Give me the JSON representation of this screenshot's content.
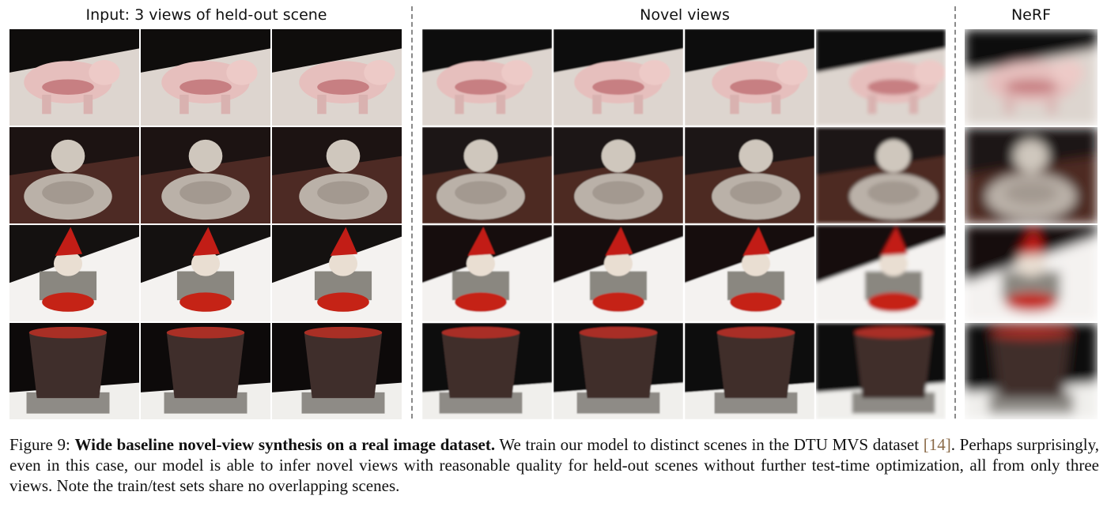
{
  "headers": {
    "input": "Input: 3 views of held-out scene",
    "novel": "Novel views",
    "nerf": "NeRF"
  },
  "rows": [
    {
      "scene": "pig",
      "input": [
        "pig view 1",
        "pig view 2",
        "pig view 3"
      ],
      "novel": [
        "pig novel view 1",
        "pig novel view 2",
        "pig novel view 3",
        "pig novel view 4"
      ],
      "nerf": "pig nerf result"
    },
    {
      "scene": "buddha",
      "input": [
        "buddha view 1",
        "buddha view 2",
        "buddha view 3"
      ],
      "novel": [
        "buddha novel view 1",
        "buddha novel view 2",
        "buddha novel view 3",
        "buddha novel view 4"
      ],
      "nerf": "buddha nerf result"
    },
    {
      "scene": "gnome",
      "input": [
        "gnome view 1",
        "gnome view 2",
        "gnome view 3"
      ],
      "novel": [
        "gnome novel view 1",
        "gnome novel view 2",
        "gnome novel view 3",
        "gnome novel view 4"
      ],
      "nerf": "gnome nerf result"
    },
    {
      "scene": "cup",
      "input": [
        "cup view 1",
        "cup view 2",
        "cup view 3"
      ],
      "novel": [
        "cup novel view 1",
        "cup novel view 2",
        "cup novel view 3",
        "cup novel view 4"
      ],
      "nerf": "cup nerf result"
    }
  ],
  "caption": {
    "label": "Figure 9:",
    "title": "Wide baseline novel-view synthesis on a real image dataset.",
    "text_1": "We train our model to distinct scenes in the DTU MVS dataset",
    "ref": "[14]",
    "text_2": ". Perhaps surprisingly, even in this case, our model is able to infer novel views with reasonable quality for held-out scenes without further test-time optimization, all from only three views. Note the train/test sets share no overlapping scenes."
  }
}
